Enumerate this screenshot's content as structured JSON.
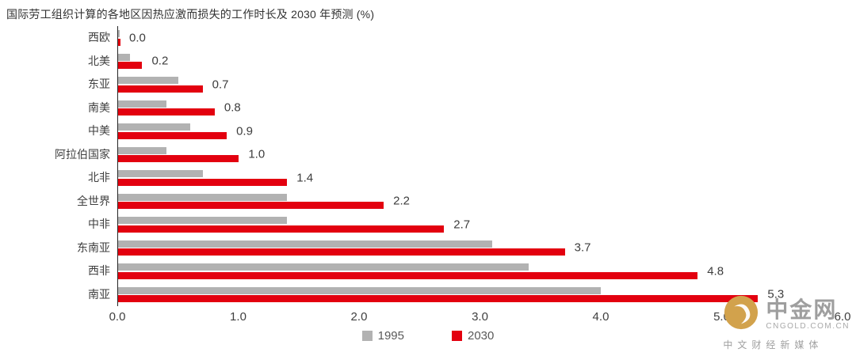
{
  "title": "国际劳工组织计算的各地区因热应激而损失的工作时长及 2030 年预测 (%)",
  "chart_data": {
    "type": "bar",
    "orientation": "horizontal",
    "title": "国际劳工组织计算的各地区因热应激而损失的工作时长及 2030 年预测 (%)",
    "categories": [
      "西欧",
      "北美",
      "东亚",
      "南美",
      "中美",
      "阿拉伯国家",
      "北非",
      "全世界",
      "中非",
      "东南亚",
      "西非",
      "南亚"
    ],
    "series": [
      {
        "name": "1995",
        "color": "#b2b2b2",
        "values": [
          0.0,
          0.1,
          0.5,
          0.4,
          0.6,
          0.4,
          0.7,
          1.4,
          1.4,
          3.1,
          3.4,
          4.0
        ]
      },
      {
        "name": "2030",
        "color": "#e3000f",
        "values": [
          0.0,
          0.2,
          0.7,
          0.8,
          0.9,
          1.0,
          1.4,
          2.2,
          2.7,
          3.7,
          4.8,
          5.3
        ]
      }
    ],
    "value_labels": [
      "0.0",
      "0.2",
      "0.7",
      "0.8",
      "0.9",
      "1.0",
      "1.4",
      "2.2",
      "2.7",
      "3.7",
      "4.8",
      "5.3"
    ],
    "xlim": [
      0,
      6
    ],
    "x_ticks": [
      "0.0",
      "1.0",
      "2.0",
      "3.0",
      "4.0",
      "5.0",
      "6.0"
    ],
    "grid": false,
    "legend_position": "bottom",
    "legend": [
      {
        "label": "1995",
        "color": "#b2b2b2"
      },
      {
        "label": "2030",
        "color": "#e3000f"
      }
    ]
  },
  "watermark": {
    "brand": "中金网",
    "domain": "CNGOLD.COM.CN",
    "tagline": "中文财经新媒体",
    "logo_color": "#d2a24c"
  }
}
